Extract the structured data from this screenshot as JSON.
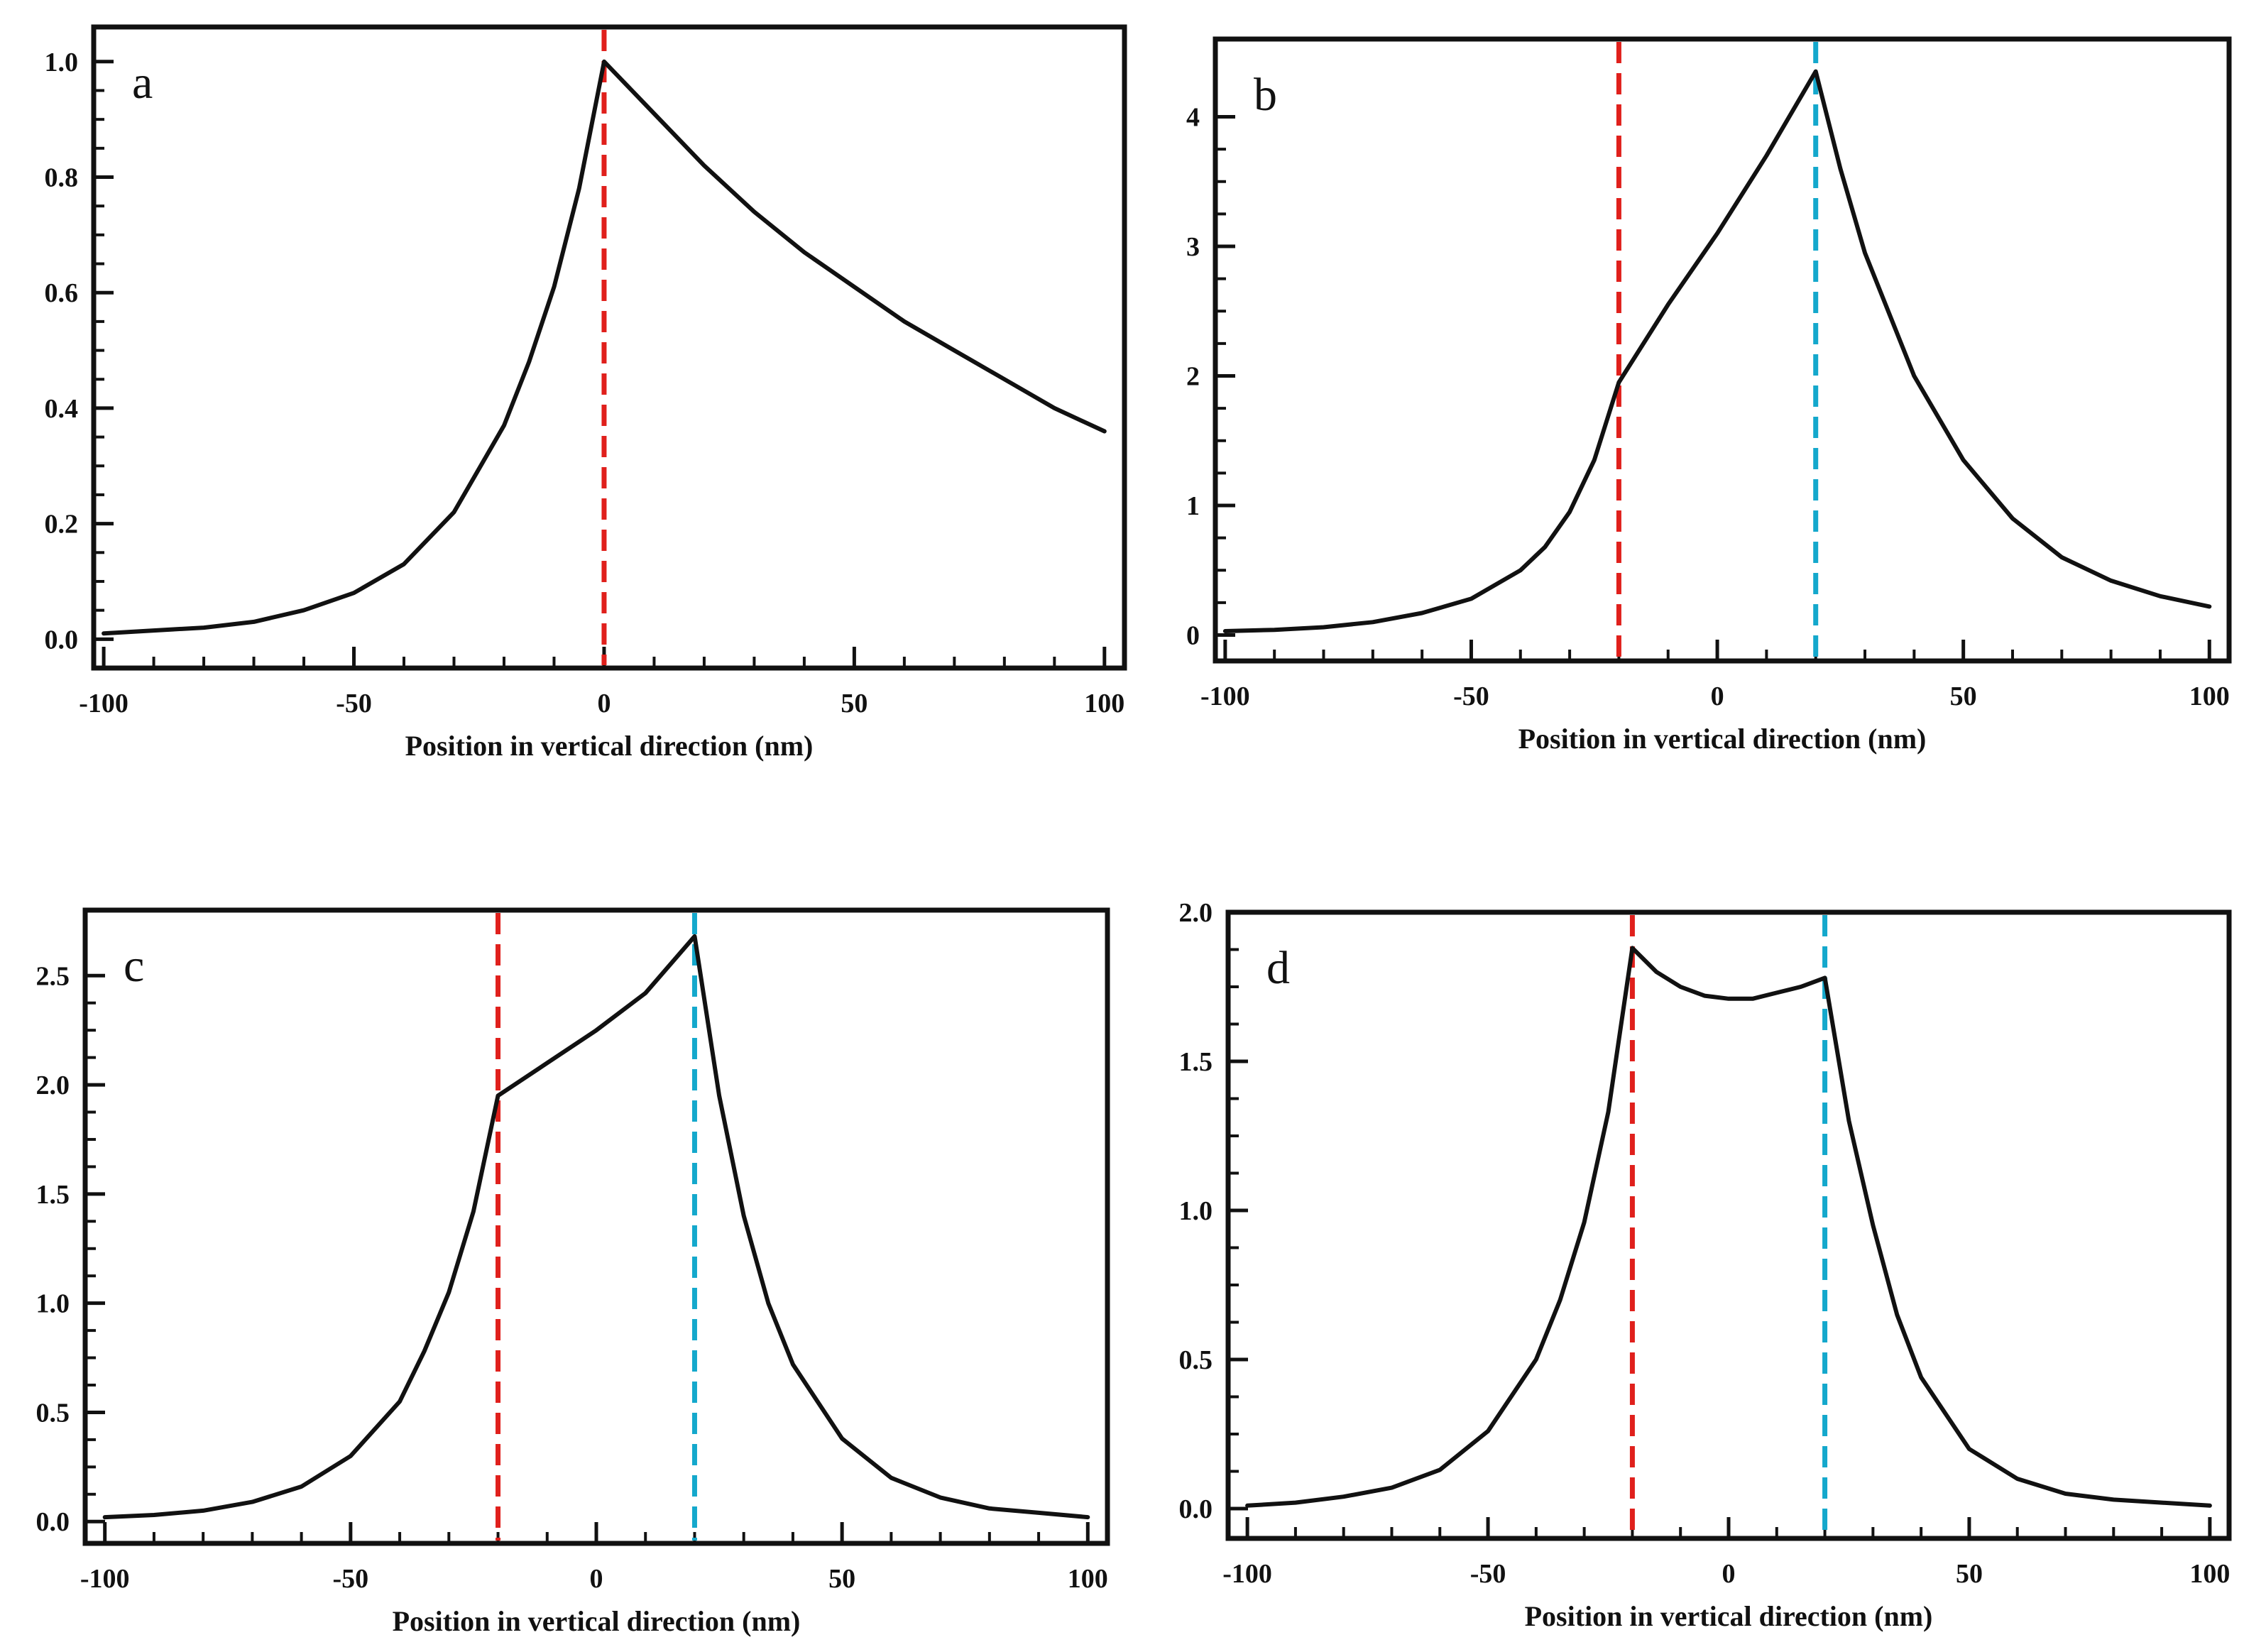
{
  "figure": {
    "description_style": "four-panel line plots of normalized profile along vertical position"
  },
  "colors": {
    "curve": "#111111",
    "axis": "#111111",
    "red_marker": "#e0201c",
    "cyan_marker": "#14a8cc",
    "background": "#ffffff"
  },
  "chart_data": [
    {
      "id": "a",
      "type": "line",
      "panel_label": "a",
      "xlabel": "Position in vertical direction (nm)",
      "ylabel": "",
      "xlim": [
        -102,
        104
      ],
      "ylim": [
        -0.05,
        1.06
      ],
      "xticks": [
        -100,
        -50,
        0,
        50,
        100
      ],
      "xtick_labels": [
        "-100",
        "-50",
        "0",
        "50",
        "100"
      ],
      "yticks": [
        0.0,
        0.2,
        0.4,
        0.6,
        0.8,
        1.0
      ],
      "ytick_labels": [
        "0.0",
        "0.2",
        "0.4",
        "0.6",
        "0.8",
        "1.0"
      ],
      "grid": false,
      "markers": [
        {
          "x": 0,
          "color": "red"
        }
      ],
      "series": [
        {
          "name": "profile",
          "x": [
            -100,
            -90,
            -80,
            -70,
            -60,
            -50,
            -40,
            -30,
            -20,
            -15,
            -10,
            -5,
            0,
            10,
            20,
            30,
            40,
            50,
            60,
            70,
            80,
            90,
            100
          ],
          "y": [
            0.01,
            0.015,
            0.02,
            0.03,
            0.05,
            0.08,
            0.13,
            0.22,
            0.37,
            0.48,
            0.61,
            0.78,
            1.0,
            0.91,
            0.82,
            0.74,
            0.67,
            0.61,
            0.55,
            0.5,
            0.45,
            0.4,
            0.36
          ]
        }
      ]
    },
    {
      "id": "b",
      "type": "line",
      "panel_label": "b",
      "xlabel": "Position in vertical direction (nm)",
      "ylabel": "",
      "xlim": [
        -102,
        104
      ],
      "ylim": [
        -0.2,
        4.6
      ],
      "xticks": [
        -100,
        -50,
        0,
        50,
        100
      ],
      "xtick_labels": [
        "-100",
        "-50",
        "0",
        "50",
        "100"
      ],
      "yticks": [
        0,
        1,
        2,
        3,
        4
      ],
      "ytick_labels": [
        "0",
        "1",
        "2",
        "3",
        "4"
      ],
      "grid": false,
      "markers": [
        {
          "x": -20,
          "color": "red"
        },
        {
          "x": 20,
          "color": "cyan"
        }
      ],
      "series": [
        {
          "name": "profile",
          "x": [
            -100,
            -90,
            -80,
            -70,
            -60,
            -50,
            -40,
            -35,
            -30,
            -25,
            -20,
            -10,
            0,
            10,
            20,
            25,
            30,
            40,
            50,
            60,
            70,
            80,
            90,
            100
          ],
          "y": [
            0.03,
            0.04,
            0.06,
            0.1,
            0.17,
            0.28,
            0.5,
            0.68,
            0.95,
            1.35,
            1.95,
            2.55,
            3.1,
            3.7,
            4.35,
            3.6,
            2.95,
            2.0,
            1.35,
            0.9,
            0.6,
            0.42,
            0.3,
            0.22
          ]
        }
      ]
    },
    {
      "id": "c",
      "type": "line",
      "panel_label": "c",
      "xlabel": "Position in vertical direction (nm)",
      "ylabel": "",
      "xlim": [
        -104,
        104
      ],
      "ylim": [
        -0.1,
        2.8
      ],
      "xticks": [
        -100,
        -50,
        0,
        50,
        100
      ],
      "xtick_labels": [
        "-100",
        "-50",
        "0",
        "50",
        "100"
      ],
      "yticks": [
        0.0,
        0.5,
        1.0,
        1.5,
        2.0,
        2.5
      ],
      "ytick_labels": [
        "0.0",
        "0.5",
        "1.0",
        "1.5",
        "2.0",
        "2.5"
      ],
      "grid": false,
      "markers": [
        {
          "x": -20,
          "color": "red"
        },
        {
          "x": 20,
          "color": "cyan"
        }
      ],
      "series": [
        {
          "name": "profile",
          "x": [
            -100,
            -90,
            -80,
            -70,
            -60,
            -50,
            -40,
            -35,
            -30,
            -25,
            -20,
            -10,
            0,
            10,
            20,
            25,
            30,
            35,
            40,
            50,
            60,
            70,
            80,
            90,
            100
          ],
          "y": [
            0.02,
            0.03,
            0.05,
            0.09,
            0.16,
            0.3,
            0.55,
            0.78,
            1.05,
            1.42,
            1.95,
            2.1,
            2.25,
            2.42,
            2.68,
            1.95,
            1.4,
            1.0,
            0.72,
            0.38,
            0.2,
            0.11,
            0.06,
            0.04,
            0.02
          ]
        }
      ]
    },
    {
      "id": "d",
      "type": "line",
      "panel_label": "d",
      "xlabel": "Position in vertical direction (nm)",
      "ylabel": "",
      "xlim": [
        -104,
        104
      ],
      "ylim": [
        -0.1,
        2.0
      ],
      "xticks": [
        -100,
        -50,
        0,
        50,
        100
      ],
      "xtick_labels": [
        "-100",
        "-50",
        "0",
        "50",
        "100"
      ],
      "yticks": [
        0.0,
        0.5,
        1.0,
        1.5,
        2.0
      ],
      "ytick_labels": [
        "0.0",
        "0.5",
        "1.0",
        "1.5",
        "2.0"
      ],
      "grid": false,
      "markers": [
        {
          "x": -20,
          "color": "red"
        },
        {
          "x": 20,
          "color": "cyan"
        }
      ],
      "series": [
        {
          "name": "profile",
          "x": [
            -100,
            -90,
            -80,
            -70,
            -60,
            -50,
            -40,
            -35,
            -30,
            -25,
            -20,
            -15,
            -10,
            -5,
            0,
            5,
            10,
            15,
            20,
            25,
            30,
            35,
            40,
            50,
            60,
            70,
            80,
            90,
            100
          ],
          "y": [
            0.01,
            0.02,
            0.04,
            0.07,
            0.13,
            0.26,
            0.5,
            0.7,
            0.96,
            1.33,
            1.88,
            1.8,
            1.75,
            1.72,
            1.71,
            1.71,
            1.73,
            1.75,
            1.78,
            1.3,
            0.95,
            0.65,
            0.44,
            0.2,
            0.1,
            0.05,
            0.03,
            0.02,
            0.01
          ]
        }
      ]
    }
  ]
}
